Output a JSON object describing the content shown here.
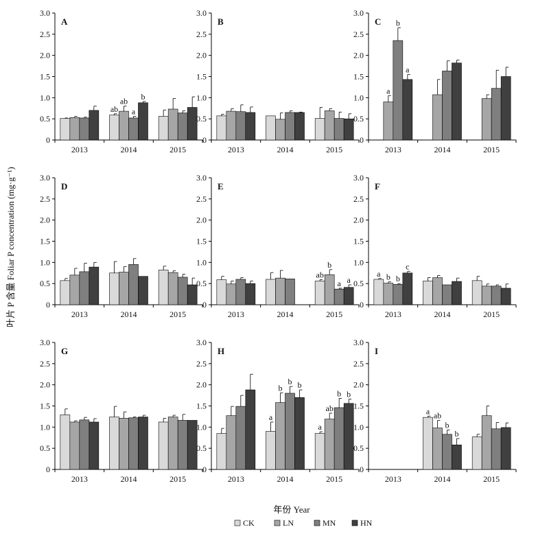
{
  "figure": {
    "ylabel": "叶片 P 含量  Foliar P concentration (mg·g⁻¹)",
    "xlabel": "年份 Year",
    "legend": [
      {
        "name": "CK",
        "color": "#d9d9d9"
      },
      {
        "name": "LN",
        "color": "#a6a6a6"
      },
      {
        "name": "MN",
        "color": "#7f7f7f"
      },
      {
        "name": "HN",
        "color": "#404040"
      }
    ]
  },
  "chart_data": [
    {
      "panel": "A",
      "type": "bar",
      "categories": [
        "2013",
        "2014",
        "2015"
      ],
      "ylim": [
        0,
        3
      ],
      "yticks": [
        "0",
        "0.5",
        "1.0",
        "1.5",
        "2.0",
        "2.5",
        "3.0"
      ],
      "series": [
        {
          "name": "CK",
          "values": [
            0.51,
            0.59,
            0.56
          ],
          "errors": [
            0.01,
            0.03,
            0.15
          ],
          "letters": [
            "",
            "ab",
            ""
          ]
        },
        {
          "name": "LN",
          "values": [
            0.53,
            0.68,
            0.73
          ],
          "errors": [
            0.03,
            0.12,
            0.25
          ],
          "letters": [
            "",
            "ab",
            ""
          ]
        },
        {
          "name": "MN",
          "values": [
            0.52,
            0.52,
            0.64
          ],
          "errors": [
            0.02,
            0.04,
            0.05
          ],
          "letters": [
            "",
            "a",
            ""
          ]
        },
        {
          "name": "HN",
          "values": [
            0.7,
            0.88,
            0.77
          ],
          "errors": [
            0.1,
            0.03,
            0.25
          ],
          "letters": [
            "",
            "b",
            ""
          ]
        }
      ]
    },
    {
      "panel": "B",
      "type": "bar",
      "categories": [
        "2013",
        "2014",
        "2015"
      ],
      "ylim": [
        0,
        3
      ],
      "yticks": [
        "0",
        "0.5",
        "1.0",
        "1.5",
        "2.0",
        "2.5",
        "3.0"
      ],
      "series": [
        {
          "name": "CK",
          "values": [
            0.57,
            0.57,
            0.51
          ],
          "errors": [
            0.04,
            0.0,
            0.26
          ],
          "letters": [
            "",
            "",
            ""
          ]
        },
        {
          "name": "LN",
          "values": [
            0.68,
            0.49,
            0.69
          ],
          "errors": [
            0.06,
            0.15,
            0.05
          ],
          "letters": [
            "",
            "",
            ""
          ]
        },
        {
          "name": "MN",
          "values": [
            0.67,
            0.65,
            0.51
          ],
          "errors": [
            0.16,
            0.04,
            0.15
          ],
          "letters": [
            "",
            "",
            ""
          ]
        },
        {
          "name": "HN",
          "values": [
            0.65,
            0.65,
            0.5
          ],
          "errors": [
            0.13,
            0.01,
            0.12
          ],
          "letters": [
            "",
            "",
            ""
          ]
        }
      ]
    },
    {
      "panel": "C",
      "type": "bar",
      "categories": [
        "2013",
        "2014",
        "2015"
      ],
      "ylim": [
        0,
        3
      ],
      "yticks": [
        "0",
        "0.5",
        "1.0",
        "1.5",
        "2.0",
        "2.5",
        "3.0"
      ],
      "series": [
        {
          "name": "CK",
          "values": [
            null,
            null,
            null
          ],
          "errors": [
            0,
            0,
            0
          ],
          "letters": [
            "",
            "",
            ""
          ]
        },
        {
          "name": "LN",
          "values": [
            0.9,
            1.07,
            0.98
          ],
          "errors": [
            0.15,
            0.36,
            0.09
          ],
          "letters": [
            "a",
            "",
            ""
          ]
        },
        {
          "name": "MN",
          "values": [
            2.35,
            1.63,
            1.22
          ],
          "errors": [
            0.3,
            0.24,
            0.43
          ],
          "letters": [
            "b",
            "",
            ""
          ]
        },
        {
          "name": "HN",
          "values": [
            1.43,
            1.82,
            1.5
          ],
          "errors": [
            0.12,
            0.07,
            0.22
          ],
          "letters": [
            "a",
            "",
            ""
          ]
        }
      ]
    },
    {
      "panel": "D",
      "type": "bar",
      "categories": [
        "2013",
        "2014",
        "2015"
      ],
      "ylim": [
        0,
        3
      ],
      "yticks": [
        "0",
        "0.5",
        "1.0",
        "1.5",
        "2.0",
        "2.5",
        "3.0"
      ],
      "series": [
        {
          "name": "CK",
          "values": [
            0.57,
            0.75,
            0.82
          ],
          "errors": [
            0.05,
            0.27,
            0.09
          ],
          "letters": [
            "",
            "",
            ""
          ]
        },
        {
          "name": "LN",
          "values": [
            0.7,
            0.77,
            0.76
          ],
          "errors": [
            0.16,
            0.13,
            0.04
          ],
          "letters": [
            "",
            "",
            ""
          ]
        },
        {
          "name": "MN",
          "values": [
            0.78,
            0.95,
            0.65
          ],
          "errors": [
            0.2,
            0.14,
            0.07
          ],
          "letters": [
            "",
            "",
            ""
          ]
        },
        {
          "name": "HN",
          "values": [
            0.89,
            0.67,
            0.47
          ],
          "errors": [
            0.11,
            0.0,
            0.16
          ],
          "letters": [
            "",
            "",
            ""
          ]
        }
      ]
    },
    {
      "panel": "E",
      "type": "bar",
      "categories": [
        "2013",
        "2014",
        "2015"
      ],
      "ylim": [
        0,
        3
      ],
      "yticks": [
        "0",
        "0.5",
        "1.0",
        "1.5",
        "2.0",
        "2.5",
        "3.0"
      ],
      "series": [
        {
          "name": "CK",
          "values": [
            0.59,
            0.6,
            0.56
          ],
          "errors": [
            0.08,
            0.16,
            0.03
          ],
          "letters": [
            "",
            "",
            "ab"
          ]
        },
        {
          "name": "LN",
          "values": [
            0.49,
            0.63,
            0.71
          ],
          "errors": [
            0.07,
            0.18,
            0.12
          ],
          "letters": [
            "",
            "",
            "b"
          ]
        },
        {
          "name": "MN",
          "values": [
            0.6,
            0.61,
            0.37
          ],
          "errors": [
            0.04,
            0.0,
            0.02
          ],
          "letters": [
            "",
            "",
            "a"
          ]
        },
        {
          "name": "HN",
          "values": [
            0.5,
            null,
            0.41
          ],
          "errors": [
            0.06,
            0,
            0.06
          ],
          "letters": [
            "",
            "",
            "a"
          ]
        }
      ]
    },
    {
      "panel": "F",
      "type": "bar",
      "categories": [
        "2013",
        "2014",
        "2015"
      ],
      "ylim": [
        0,
        3
      ],
      "yticks": [
        "0",
        "0.5",
        "1.0",
        "1.5",
        "2.0",
        "2.5",
        "3.0"
      ],
      "series": [
        {
          "name": "CK",
          "values": [
            0.6,
            0.56,
            0.57
          ],
          "errors": [
            0.02,
            0.08,
            0.1
          ],
          "letters": [
            "a",
            "",
            ""
          ]
        },
        {
          "name": "LN",
          "values": [
            0.51,
            0.64,
            0.44
          ],
          "errors": [
            0.03,
            0.05,
            0.05
          ],
          "letters": [
            "b",
            "",
            ""
          ]
        },
        {
          "name": "MN",
          "values": [
            0.48,
            0.47,
            0.44
          ],
          "errors": [
            0.02,
            0.0,
            0.03
          ],
          "letters": [
            "b",
            "",
            ""
          ]
        },
        {
          "name": "HN",
          "values": [
            0.75,
            0.55,
            0.39
          ],
          "errors": [
            0.04,
            0.08,
            0.1
          ],
          "letters": [
            "c",
            "",
            ""
          ]
        }
      ]
    },
    {
      "panel": "G",
      "type": "bar",
      "categories": [
        "2013",
        "2014",
        "2015"
      ],
      "ylim": [
        0,
        3
      ],
      "yticks": [
        "0",
        "0.5",
        "1.0",
        "1.5",
        "2.0",
        "2.5",
        "3.0"
      ],
      "series": [
        {
          "name": "CK",
          "values": [
            1.29,
            1.24,
            1.12
          ],
          "errors": [
            0.14,
            0.25,
            0.09
          ],
          "letters": [
            "",
            "",
            ""
          ]
        },
        {
          "name": "LN",
          "values": [
            1.12,
            1.21,
            1.24
          ],
          "errors": [
            0.03,
            0.15,
            0.04
          ],
          "letters": [
            "",
            "",
            ""
          ]
        },
        {
          "name": "MN",
          "values": [
            1.17,
            1.22,
            1.16
          ],
          "errors": [
            0.06,
            0.02,
            0.14
          ],
          "letters": [
            "",
            "",
            ""
          ]
        },
        {
          "name": "HN",
          "values": [
            1.12,
            1.24,
            1.16
          ],
          "errors": [
            0.08,
            0.04,
            0.0
          ],
          "letters": [
            "",
            "",
            ""
          ]
        }
      ]
    },
    {
      "panel": "H",
      "type": "bar",
      "categories": [
        "2013",
        "2014",
        "2015"
      ],
      "ylim": [
        0,
        3
      ],
      "yticks": [
        "0",
        "0.5",
        "1.0",
        "1.5",
        "2.0",
        "2.5",
        "3.0"
      ],
      "series": [
        {
          "name": "CK",
          "values": [
            0.85,
            0.9,
            0.85
          ],
          "errors": [
            0.12,
            0.22,
            0.04
          ],
          "letters": [
            "",
            "a",
            "a"
          ]
        },
        {
          "name": "LN",
          "values": [
            1.27,
            1.58,
            1.19
          ],
          "errors": [
            0.22,
            0.23,
            0.14
          ],
          "letters": [
            "",
            "b",
            "ab"
          ]
        },
        {
          "name": "MN",
          "values": [
            1.49,
            1.8,
            1.46
          ],
          "errors": [
            0.26,
            0.16,
            0.22
          ],
          "letters": [
            "",
            "b",
            "b"
          ]
        },
        {
          "name": "HN",
          "values": [
            1.88,
            1.7,
            1.56
          ],
          "errors": [
            0.37,
            0.18,
            0.1
          ],
          "letters": [
            "",
            "b",
            "b"
          ]
        }
      ]
    },
    {
      "panel": "I",
      "type": "bar",
      "categories": [
        "2013",
        "2014",
        "2015"
      ],
      "ylim": [
        0,
        3
      ],
      "yticks": [
        "0",
        "0.5",
        "1.0",
        "1.5",
        "2.0",
        "2.5",
        "3.0"
      ],
      "series": [
        {
          "name": "CK",
          "values": [
            null,
            1.23,
            0.77
          ],
          "errors": [
            0,
            0.03,
            0.06
          ],
          "letters": [
            "",
            "a",
            ""
          ]
        },
        {
          "name": "LN",
          "values": [
            null,
            0.98,
            1.27
          ],
          "errors": [
            0,
            0.18,
            0.23
          ],
          "letters": [
            "",
            "ab",
            ""
          ]
        },
        {
          "name": "MN",
          "values": [
            null,
            0.83,
            0.96
          ],
          "errors": [
            0,
            0.1,
            0.15
          ],
          "letters": [
            "",
            "b",
            ""
          ]
        },
        {
          "name": "HN",
          "values": [
            null,
            0.58,
            0.99
          ],
          "errors": [
            0,
            0.15,
            0.11
          ],
          "letters": [
            "",
            "b",
            ""
          ]
        }
      ]
    }
  ]
}
